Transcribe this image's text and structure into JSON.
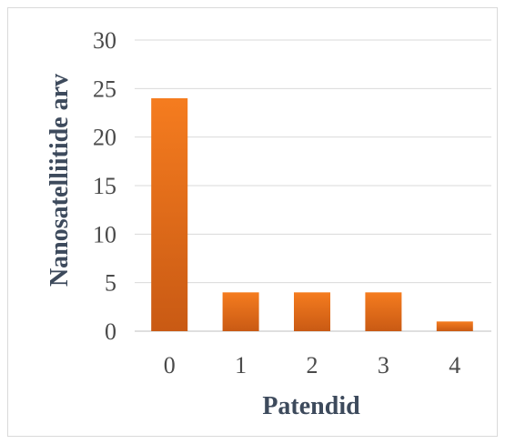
{
  "chart_data": {
    "type": "bar",
    "categories": [
      "0",
      "1",
      "2",
      "3",
      "4"
    ],
    "values": [
      24,
      4,
      4,
      4,
      1
    ],
    "title": "",
    "xlabel": "Patendid",
    "ylabel": "Nanosatelliitide arv",
    "ylim": [
      0,
      30
    ],
    "yticks": [
      0,
      5,
      10,
      15,
      20,
      25,
      30
    ],
    "grid": true,
    "legend": "none",
    "colors": {
      "bar_top": "#f57c1f",
      "bar_bottom": "#c95a14",
      "grid": "#d9d9d9",
      "axis_line": "#bfbfbf"
    }
  }
}
